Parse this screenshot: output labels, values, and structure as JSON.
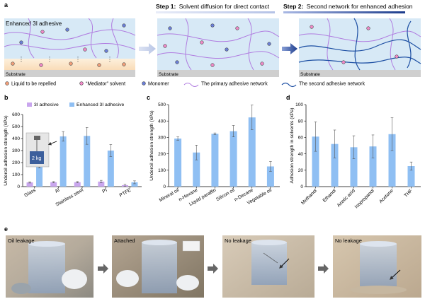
{
  "panel_a": {
    "letter": "a",
    "step1_bold": "Step 1:",
    "step1_text": "Solvent diffusion for direct contact",
    "step2_bold": "Step 2:",
    "step2_text": "Second network for enhanced adhesion",
    "adhesive_label": "Enhanced 3I adhesive",
    "substrate_label": "Substrate",
    "legend": [
      {
        "label": "Liquid to be repelled",
        "icon": "orange-circle",
        "color": "#f4a07a"
      },
      {
        "label": "“Mediator” solvent",
        "icon": "pink-circle",
        "color": "#f08ac8"
      },
      {
        "label": "Monomer",
        "icon": "blue-circle",
        "color": "#6b7fd8"
      },
      {
        "label": "The primary adhesive network",
        "icon": "purple-wave",
        "color": "#b07ce0"
      },
      {
        "label": "The second adhesive network",
        "icon": "blue-wave",
        "color": "#1d4fa3"
      }
    ]
  },
  "panel_b": {
    "letter": "b"
  },
  "panel_c": {
    "letter": "c"
  },
  "panel_d": {
    "letter": "d"
  },
  "panel_e": {
    "letter": "e",
    "photos": [
      {
        "label": "Oil leakage"
      },
      {
        "label": "Attached"
      },
      {
        "label": "No leakage"
      },
      {
        "label": "No leakage"
      }
    ]
  },
  "colors": {
    "light_bar": "#c9a6ee",
    "blue_bar": "#8fbff3",
    "error": "#555555"
  },
  "chart_data": [
    {
      "type": "bar",
      "ylabel": "Underoil adhesion strength (kPa)",
      "ylim": [
        0,
        600
      ],
      "yticks": [
        0,
        100,
        200,
        300,
        400,
        500,
        600
      ],
      "categories": [
        "Glass",
        "Al",
        "Stainless steel",
        "PI",
        "PTFE"
      ],
      "legend_position": "top",
      "inset_label": "2 kg",
      "series": [
        {
          "name": "3I adhesive",
          "values": [
            35,
            37,
            37,
            42,
            12
          ],
          "errors": [
            5,
            5,
            5,
            10,
            8
          ]
        },
        {
          "name": "Enhanced 3I adhesive",
          "values": [
            170,
            418,
            422,
            300,
            36
          ],
          "errors": [
            15,
            40,
            70,
            50,
            12
          ]
        }
      ]
    },
    {
      "type": "bar",
      "ylabel": "Underoil adhesion strength (kPa)",
      "ylim": [
        0,
        500
      ],
      "yticks": [
        0,
        100,
        200,
        300,
        400,
        500
      ],
      "categories": [
        "Mineral oil",
        "n-Hexane",
        "Liquid paraffin",
        "Silicon oil",
        "n-Decane",
        "Vegetable oil"
      ],
      "series": [
        {
          "values": [
            293,
            208,
            322,
            338,
            422,
            123
          ],
          "errors": [
            10,
            45,
            5,
            35,
            75,
            30
          ]
        }
      ]
    },
    {
      "type": "bar",
      "ylabel": "Adhesion strength in solvents (kPa)",
      "ylim": [
        0,
        100
      ],
      "yticks": [
        0,
        20,
        40,
        60,
        80,
        100
      ],
      "categories": [
        "Methanol",
        "Ethanol",
        "Acetic acid",
        "Isopropanol",
        "Acetone",
        "THF"
      ],
      "series": [
        {
          "values": [
            61,
            52,
            48,
            49,
            64,
            25
          ],
          "errors": [
            18,
            17,
            14,
            14,
            20,
            5
          ]
        }
      ]
    }
  ]
}
